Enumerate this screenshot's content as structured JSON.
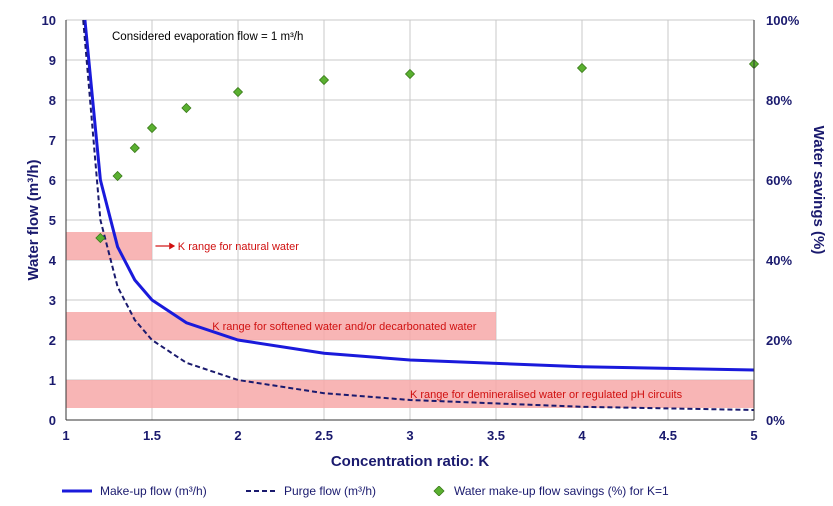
{
  "chart_data": {
    "type": "line",
    "note": "Considered evaporation flow = 1 m³/h",
    "xlabel": "Concentration ratio: K",
    "ylabel": "Water flow (m³/h)",
    "y2label": "Water savings (%)",
    "xlim": [
      1,
      5
    ],
    "ylim": [
      0,
      10
    ],
    "y2lim": [
      0,
      100
    ],
    "xticks": [
      "1",
      "1.5",
      "2",
      "2.5",
      "3",
      "3.5",
      "4",
      "4.5",
      "5"
    ],
    "yticks": [
      "0",
      "1",
      "2",
      "3",
      "4",
      "5",
      "6",
      "7",
      "8",
      "9",
      "10"
    ],
    "y2ticks": [
      "0%",
      "20%",
      "40%",
      "60%",
      "80%",
      "100%"
    ],
    "grid": true,
    "bands": [
      {
        "label": "K range for natural water",
        "x": [
          1,
          1.5
        ],
        "y": [
          4,
          4.7
        ]
      },
      {
        "label": "K range for softened water and/or decarbonated water",
        "x": [
          1,
          3.5
        ],
        "y": [
          2,
          2.7
        ]
      },
      {
        "label": "K range for demineralised water or regulated pH circuits",
        "x": [
          1,
          5
        ],
        "y": [
          0.3,
          1
        ]
      }
    ],
    "series": [
      {
        "name": "Make-up flow (m³/h)",
        "style": "solid",
        "color": "#1a1adb",
        "x": [
          1.11,
          1.2,
          1.3,
          1.4,
          1.5,
          1.7,
          2,
          2.5,
          3,
          4,
          5
        ],
        "y": [
          10,
          6,
          4.33,
          3.5,
          3,
          2.43,
          2,
          1.67,
          1.5,
          1.33,
          1.25
        ]
      },
      {
        "name": "Purge flow (m³/h)",
        "style": "dashed",
        "color": "#1a1a6e",
        "x": [
          1.1,
          1.2,
          1.3,
          1.4,
          1.5,
          1.7,
          2,
          2.5,
          3,
          4,
          5
        ],
        "y": [
          10,
          5,
          3.33,
          2.5,
          2,
          1.43,
          1,
          0.67,
          0.5,
          0.33,
          0.25
        ]
      },
      {
        "name": "Water make-up flow savings (%) for K=1",
        "style": "markers",
        "axis": "right",
        "color": "#5ab030",
        "x": [
          1.2,
          1.3,
          1.4,
          1.5,
          1.7,
          2,
          2.5,
          3,
          4,
          5
        ],
        "y": [
          45.5,
          61,
          68,
          73,
          78,
          82,
          85,
          86.5,
          88,
          89
        ]
      }
    ]
  }
}
